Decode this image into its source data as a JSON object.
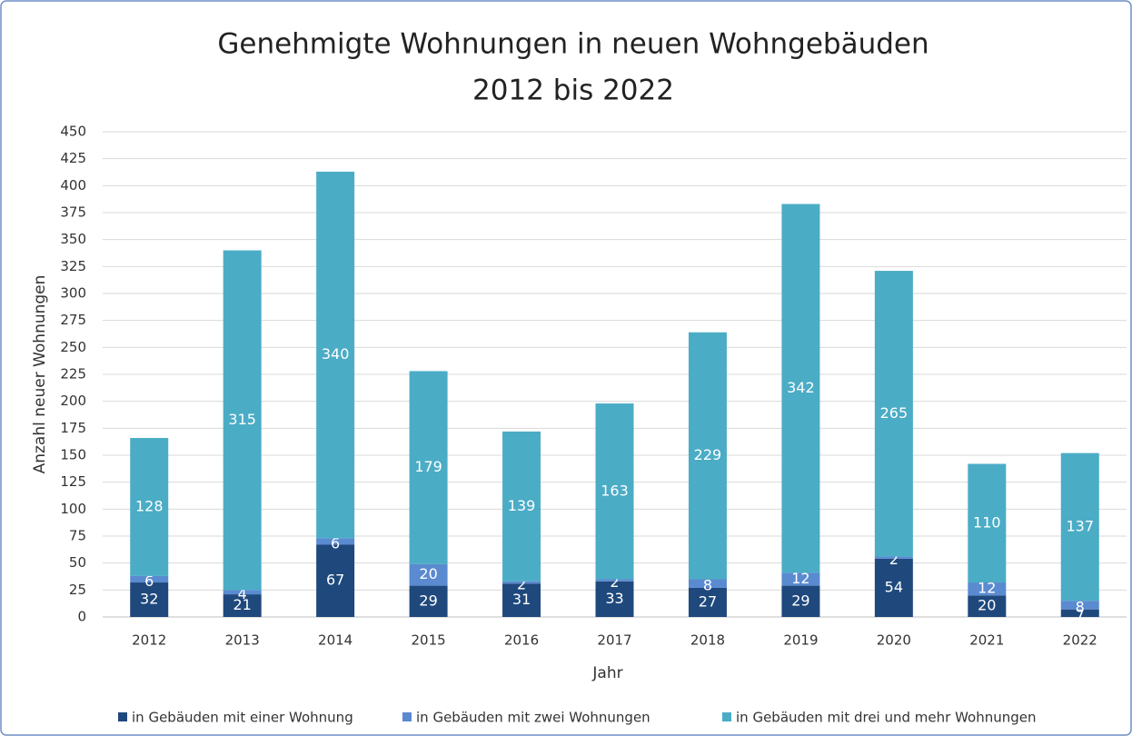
{
  "chart_data": {
    "type": "stacked_bar",
    "title": [
      "Genehmigte Wohnungen in neuen Wohngebäuden",
      "2012 bis 2022"
    ],
    "x_label": "Jahr",
    "y_label": "Anzahl neuer Wohnungen",
    "categories": [
      "2012",
      "2013",
      "2014",
      "2015",
      "2016",
      "2017",
      "2018",
      "2019",
      "2020",
      "2021",
      "2022"
    ],
    "series": [
      {
        "name": "in Gebäuden mit einer Wohnung",
        "color": "#1f497d",
        "values": [
          32,
          21,
          67,
          29,
          31,
          33,
          27,
          29,
          54,
          20,
          7
        ]
      },
      {
        "name": "in Gebäuden mit zwei Wohnungen",
        "color": "#5a8ad0",
        "values": [
          6,
          4,
          6,
          20,
          2,
          2,
          8,
          12,
          2,
          12,
          8
        ]
      },
      {
        "name": "in Gebäuden mit drei und mehr Wohnungen",
        "color": "#4bacc6",
        "values": [
          128,
          315,
          340,
          179,
          139,
          163,
          229,
          342,
          265,
          110,
          137
        ]
      }
    ],
    "ylim": [
      0,
      450
    ],
    "yticks": [
      0,
      25,
      50,
      75,
      100,
      125,
      150,
      175,
      200,
      225,
      250,
      275,
      300,
      325,
      350,
      375,
      400,
      425,
      450
    ],
    "grid": true,
    "legend": "bottom"
  }
}
